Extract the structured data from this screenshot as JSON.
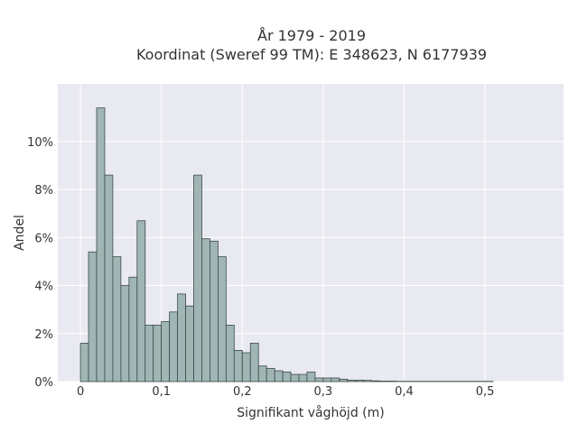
{
  "chart_data": {
    "type": "bar",
    "title": "År 1979 - 2019",
    "subtitle": "Koordinat (Sweref 99 TM): E 348623, N 6177939",
    "xlabel": "Signifikant våghöjd (m)",
    "ylabel": "Andel",
    "bin_width": 0.01,
    "bin_start": 0.0,
    "xlim": [
      -0.028,
      0.597
    ],
    "ylim": [
      0,
      12.4
    ],
    "x_ticks": [
      0,
      0.1,
      0.2,
      0.3,
      0.4,
      0.5
    ],
    "x_tick_labels": [
      "0",
      "0,1",
      "0,2",
      "0,3",
      "0,4",
      "0,5"
    ],
    "y_ticks": [
      0,
      2,
      4,
      6,
      8,
      10
    ],
    "y_tick_labels": [
      "0%",
      "2%",
      "4%",
      "6%",
      "8%",
      "10%"
    ],
    "values": [
      1.6,
      5.4,
      11.4,
      8.6,
      5.2,
      4.0,
      4.35,
      6.7,
      2.35,
      2.35,
      2.5,
      2.9,
      3.65,
      3.15,
      8.6,
      5.95,
      5.85,
      5.2,
      2.35,
      1.3,
      1.2,
      1.6,
      0.65,
      0.55,
      0.45,
      0.4,
      0.3,
      0.3,
      0.4,
      0.15,
      0.15,
      0.15,
      0.1,
      0.06,
      0.06,
      0.05,
      0.03,
      0.02,
      0.02,
      0.01,
      0.01,
      0.01,
      0.01,
      0.01,
      0.01,
      0.01,
      0.01,
      0.01,
      0.01,
      0.01,
      0.01
    ],
    "grid": true,
    "legend": "none",
    "colors": {
      "plot_background": "#e9e9f1",
      "bar_fill": "#9fb6b5",
      "bar_edge": "#3e4a49",
      "grid": "#ffffff"
    }
  }
}
